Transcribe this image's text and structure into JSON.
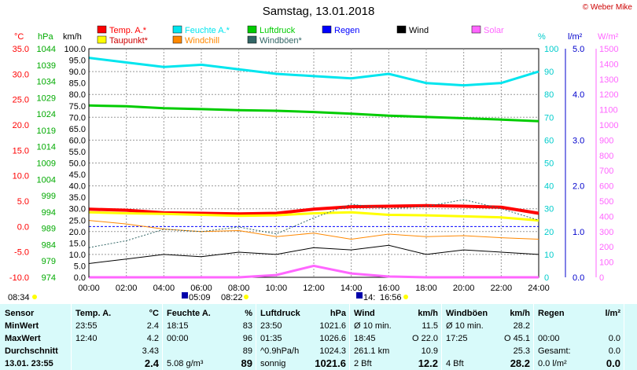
{
  "header": {
    "title": "Samstag, 13.01.2018",
    "copyright": "© Weber Mike"
  },
  "axes": {
    "temp_unit": "°C",
    "hpa_unit": "hPa",
    "kmh_unit": "km/h",
    "pct_unit": "%",
    "rain_unit": "l/m²",
    "solar_unit": "W/m²",
    "temp_ticks": [
      "35.0",
      "30.0",
      "25.0",
      "20.0",
      "15.0",
      "10.0",
      "5.0",
      "0.0",
      "-5.0",
      "-10.0"
    ],
    "hpa_ticks": [
      "1044",
      "1039",
      "1034",
      "1029",
      "1024",
      "1019",
      "1014",
      "1009",
      "1004",
      "999",
      "994",
      "989",
      "984",
      "979",
      "974"
    ],
    "kmh_ticks": [
      "100.0",
      "95.0",
      "90.0",
      "85.0",
      "80.0",
      "75.0",
      "70.0",
      "65.0",
      "60.0",
      "55.0",
      "50.0",
      "45.0",
      "40.0",
      "35.0",
      "30.0",
      "25.0",
      "20.0",
      "15.0",
      "10.0",
      "5.0",
      "0.0"
    ],
    "pct_ticks": [
      "100",
      "90",
      "80",
      "70",
      "60",
      "50",
      "40",
      "30",
      "20",
      "10",
      "0"
    ],
    "rain_ticks": [
      "5.0",
      "4.0",
      "3.0",
      "2.0",
      "1.0",
      "0.0"
    ],
    "solar_ticks": [
      "1500",
      "1400",
      "1300",
      "1200",
      "1100",
      "1000",
      "900",
      "800",
      "700",
      "600",
      "500",
      "400",
      "300",
      "200",
      "100",
      "0"
    ],
    "time_ticks": [
      "00:00",
      "02:00",
      "04:00",
      "06:00",
      "08:00",
      "10:00",
      "12:00",
      "14:00",
      "16:00",
      "18:00",
      "20:00",
      "22:00",
      "24:00"
    ]
  },
  "legend": [
    {
      "label": "Temp. A.*",
      "color": "#ff0000"
    },
    {
      "label": "Feuchte A.*",
      "color": "#00e5ee"
    },
    {
      "label": "Luftdruck",
      "color": "#00cc00"
    },
    {
      "label": "Regen",
      "color": "#0000ff"
    },
    {
      "label": "Wind",
      "color": "#000000"
    },
    {
      "label": "Solar",
      "color": "#ff66ff"
    },
    {
      "label": "Taupunkt*",
      "color": "#ffff00"
    },
    {
      "label": "Windchill",
      "color": "#ff8800"
    },
    {
      "label": "Windböen*",
      "color": "#336666"
    }
  ],
  "sun": {
    "sunrise": "08:34",
    "moonset": "05:09",
    "moonset2": "08:22",
    "moonrise": "14:",
    "sunset": "16:56"
  },
  "chart_data": {
    "type": "line",
    "x_label": "",
    "x": [
      "00:00",
      "02:00",
      "04:00",
      "06:00",
      "08:00",
      "10:00",
      "12:00",
      "14:00",
      "16:00",
      "18:00",
      "20:00",
      "22:00",
      "24:00"
    ],
    "series": [
      {
        "name": "Temp. A.*",
        "axis": "°C",
        "values": [
          3.4,
          3.2,
          2.7,
          2.6,
          2.5,
          2.6,
          3.4,
          3.9,
          4.0,
          4.1,
          4.0,
          3.8,
          2.6
        ]
      },
      {
        "name": "Feuchte A.*",
        "axis": "%",
        "values": [
          96,
          94,
          92,
          93,
          91,
          89,
          88,
          87,
          89,
          85,
          84,
          85,
          90
        ]
      },
      {
        "name": "Luftdruck",
        "axis": "hPa",
        "values": [
          1026.6,
          1026.4,
          1025.8,
          1025.5,
          1025.2,
          1025.0,
          1024.6,
          1024.1,
          1023.5,
          1023.1,
          1022.7,
          1022.3,
          1021.8
        ]
      },
      {
        "name": "Taupunkt*",
        "axis": "°C",
        "values": [
          2.8,
          2.6,
          2.5,
          2.3,
          2.1,
          2.2,
          2.6,
          2.8,
          2.3,
          2.2,
          2.0,
          1.8,
          1.2
        ]
      },
      {
        "name": "Windchill",
        "axis": "°C",
        "values": [
          1.2,
          0.5,
          -0.5,
          -1.0,
          -0.8,
          -2.0,
          -1.3,
          -2.5,
          -1.5,
          -2.0,
          -1.8,
          -2.2,
          -2.5
        ]
      },
      {
        "name": "Wind",
        "axis": "km/h",
        "values": [
          6,
          8,
          10,
          9,
          11,
          10,
          13,
          12,
          14,
          10,
          12,
          11,
          10
        ]
      },
      {
        "name": "Windböen*",
        "axis": "km/h",
        "values": [
          13,
          16,
          21,
          20,
          22,
          19,
          26,
          32,
          30,
          31,
          34,
          30,
          25
        ]
      },
      {
        "name": "Solar",
        "axis": "W/m²",
        "values": [
          0,
          0,
          0,
          0,
          0,
          15,
          75,
          25,
          5,
          0,
          0,
          0,
          0
        ]
      }
    ],
    "ylim_temp": [
      -10,
      35
    ],
    "ylim_hpa": [
      974,
      1044
    ],
    "ylim_kmh": [
      0,
      100
    ],
    "ylim_pct": [
      0,
      100
    ],
    "ylim_rain": [
      0,
      5
    ],
    "ylim_solar": [
      0,
      1500
    ]
  },
  "table": {
    "cols": [
      {
        "head": [
          "Sensor",
          ""
        ],
        "rows": [
          [
            "MinWert",
            ""
          ],
          [
            "MaxWert",
            ""
          ],
          [
            "Durchschnitt",
            ""
          ],
          [
            "13.01. 23:55",
            ""
          ]
        ]
      },
      {
        "head": [
          "Temp. A.",
          "°C"
        ],
        "rows": [
          [
            "23:55",
            "2.4"
          ],
          [
            "12:40",
            "4.2"
          ],
          [
            "",
            "3.43"
          ],
          [
            "",
            "2.4"
          ]
        ]
      },
      {
        "head": [
          "Feuchte A.",
          "%"
        ],
        "rows": [
          [
            "18:15",
            "83"
          ],
          [
            "00:00",
            "96"
          ],
          [
            "",
            "89"
          ],
          [
            "5.08 g/m³",
            "89"
          ]
        ]
      },
      {
        "head": [
          "Luftdruck",
          "hPa"
        ],
        "rows": [
          [
            "23:50",
            "1021.6"
          ],
          [
            "01:35",
            "1026.6"
          ],
          [
            "^0.9hPa/h",
            "1024.3"
          ],
          [
            "sonnig",
            "1021.6"
          ]
        ]
      },
      {
        "head": [
          "Wind",
          "km/h"
        ],
        "rows": [
          [
            "Ø 10 min.",
            "11.5"
          ],
          [
            "18:45",
            "O 22.0"
          ],
          [
            "261.1 km",
            "10.9"
          ],
          [
            "2 Bft",
            "12.2"
          ]
        ]
      },
      {
        "head": [
          "Windböen",
          "km/h"
        ],
        "rows": [
          [
            "Ø 10 min.",
            "28.2"
          ],
          [
            "17:25",
            "O 45.1"
          ],
          [
            "",
            "25.3"
          ],
          [
            "4 Bft",
            "28.2"
          ]
        ]
      },
      {
        "head": [
          "Regen",
          "l/m²"
        ],
        "rows": [
          [
            "",
            ""
          ],
          [
            "00:00",
            "0.0"
          ],
          [
            "Gesamt:",
            "0.0"
          ],
          [
            "0.0 l/m²",
            "0.0"
          ]
        ]
      }
    ]
  }
}
